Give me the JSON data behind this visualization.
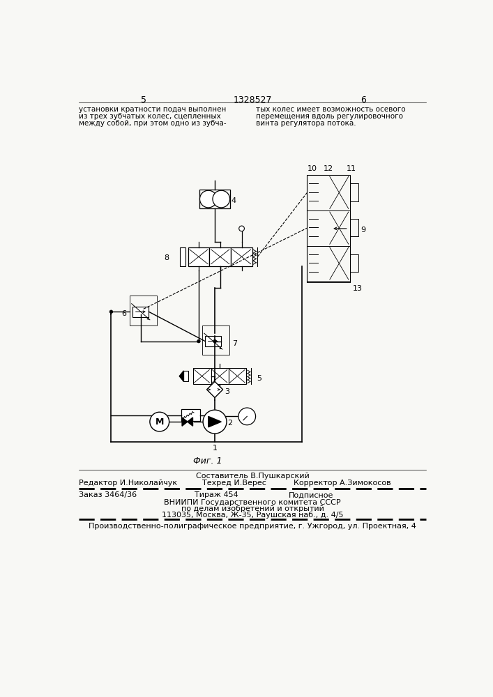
{
  "bg_color": "#f8f8f5",
  "page_width": 7.07,
  "page_height": 10.0,
  "header_left_num": "5",
  "header_center": "1328527",
  "header_right_num": "6",
  "text_left_lines": [
    "установки кратности подач выполнен",
    "из трех зубчатых колес, сцепленных",
    "между собой, при этом одно из зубча-"
  ],
  "text_right_lines": [
    "тых колес имеет возможность осевого",
    "перемещения вдоль регулировочного",
    "винта регулятора потока."
  ],
  "fig_caption": "Фиг. 1",
  "footer_top_center": "Составитель В.Пушкарский",
  "footer_editor": "Редактор И.Николайчук",
  "footer_tech": "Техред И.Верес",
  "footer_corrector": "Корректор А.Зимокосов",
  "footer_order": "Заказ 3464/36",
  "footer_print": "Тираж 454",
  "footer_sign": "Подписное",
  "footer_vnipi1": "ВНИИПИ Государственного комитета СССР",
  "footer_vnipi2": "по делам изобретений и открытий",
  "footer_vnipi3": "113035, Москва, Ж-35, Раушская наб., д. 4/5",
  "footer_bottom": "Производственно-полиграфическое предприятие, г. Ужгород, ул. Проектная, 4"
}
